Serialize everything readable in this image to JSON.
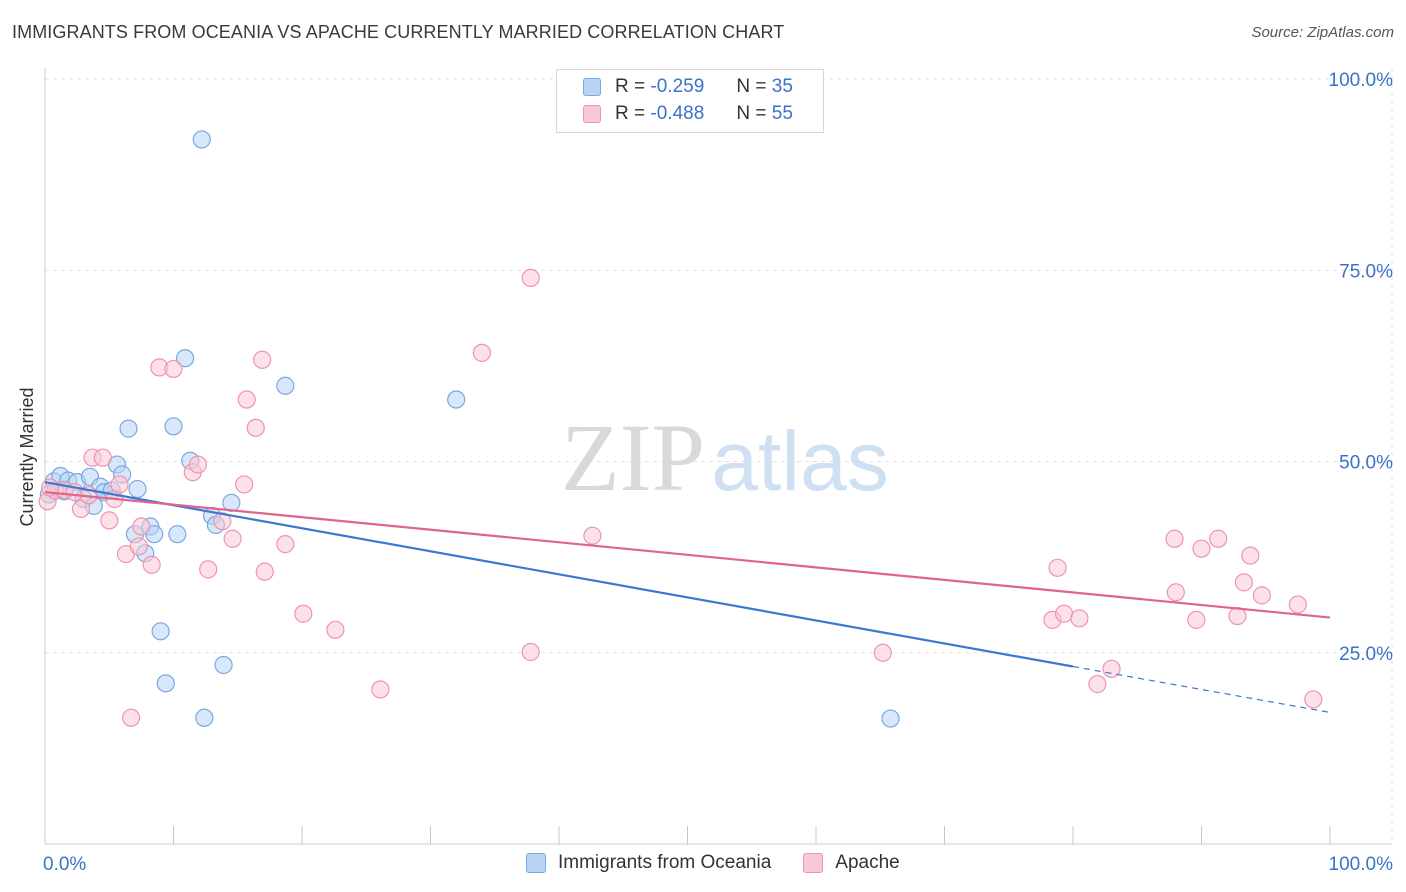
{
  "title": "IMMIGRANTS FROM OCEANIA VS APACHE CURRENTLY MARRIED CORRELATION CHART",
  "source": "Source: ZipAtlas.com",
  "watermark": {
    "zip": "ZIP",
    "atlas": "atlas"
  },
  "legend": {
    "r_label": "R =",
    "n_label": "N =",
    "rows": [
      {
        "r": "-0.259",
        "n": "35",
        "fill": "#b8d4f5",
        "stroke": "#7aa8e0"
      },
      {
        "r": "-0.488",
        "n": "55",
        "fill": "#f9c8d6",
        "stroke": "#ef94b0"
      }
    ]
  },
  "bottom_legend": [
    {
      "label": "Immigrants from Oceania",
      "fill": "#b8d4f5",
      "stroke": "#7aa8e0"
    },
    {
      "label": "Apache",
      "fill": "#f9c8d6",
      "stroke": "#ef94b0"
    }
  ],
  "chart_data": {
    "type": "scatter",
    "title": "IMMIGRANTS FROM OCEANIA VS APACHE CURRENTLY MARRIED CORRELATION CHART",
    "xlabel": "",
    "ylabel": "Currently Married",
    "xlim": [
      0,
      100
    ],
    "ylim": [
      0,
      103
    ],
    "x_tick_labels": [
      "0.0%",
      "100.0%"
    ],
    "y_tick_values": [
      25,
      50,
      75,
      100
    ],
    "y_tick_labels": [
      "25.0%",
      "50.0%",
      "75.0%",
      "100.0%"
    ],
    "grid": true,
    "series": [
      {
        "name": "Immigrants from Oceania",
        "color": "#3a78d4",
        "fill": "#b8d4f5",
        "trend": {
          "x0": 0,
          "y0": 47.3,
          "x1": 80,
          "y1": 23.2,
          "dashed_to_x": 100,
          "dashed_to_y": 17.2
        },
        "points": [
          [
            0.7,
            47.4
          ],
          [
            1.2,
            48.1
          ],
          [
            1.8,
            47.5
          ],
          [
            2.5,
            47.3
          ],
          [
            3.0,
            45.1
          ],
          [
            3.5,
            48.0
          ],
          [
            3.8,
            44.2
          ],
          [
            4.3,
            46.7
          ],
          [
            4.6,
            46.0
          ],
          [
            5.2,
            46.2
          ],
          [
            5.6,
            49.6
          ],
          [
            6.0,
            48.3
          ],
          [
            6.5,
            54.3
          ],
          [
            7.2,
            46.4
          ],
          [
            7.0,
            40.5
          ],
          [
            7.8,
            38.0
          ],
          [
            8.2,
            41.5
          ],
          [
            8.5,
            40.5
          ],
          [
            9.0,
            27.8
          ],
          [
            9.4,
            21.0
          ],
          [
            10.0,
            54.6
          ],
          [
            10.3,
            40.5
          ],
          [
            10.9,
            63.5
          ],
          [
            11.3,
            50.1
          ],
          [
            12.2,
            92.1
          ],
          [
            12.4,
            16.5
          ],
          [
            13.0,
            42.9
          ],
          [
            13.3,
            41.7
          ],
          [
            13.9,
            23.4
          ],
          [
            14.5,
            44.6
          ],
          [
            18.7,
            59.9
          ],
          [
            32.0,
            58.1
          ],
          [
            65.8,
            16.4
          ],
          [
            0.3,
            45.7
          ],
          [
            1.5,
            46.1
          ]
        ]
      },
      {
        "name": "Apache",
        "color": "#e0648c",
        "fill": "#f9c8d6",
        "trend": {
          "x0": 0,
          "y0": 46.0,
          "x1": 100,
          "y1": 29.6
        },
        "points": [
          [
            0.2,
            44.8
          ],
          [
            0.8,
            46.2
          ],
          [
            1.5,
            46.3
          ],
          [
            2.3,
            46.0
          ],
          [
            2.8,
            43.8
          ],
          [
            3.4,
            45.6
          ],
          [
            3.7,
            50.5
          ],
          [
            4.5,
            50.5
          ],
          [
            5.0,
            42.3
          ],
          [
            5.4,
            45.1
          ],
          [
            5.8,
            47.0
          ],
          [
            6.3,
            37.9
          ],
          [
            7.3,
            38.9
          ],
          [
            6.7,
            16.5
          ],
          [
            7.5,
            41.5
          ],
          [
            8.3,
            36.5
          ],
          [
            8.9,
            62.3
          ],
          [
            10.0,
            62.1
          ],
          [
            11.5,
            48.6
          ],
          [
            11.9,
            49.6
          ],
          [
            12.7,
            35.9
          ],
          [
            13.8,
            42.2
          ],
          [
            14.6,
            39.9
          ],
          [
            15.7,
            58.1
          ],
          [
            15.5,
            47.0
          ],
          [
            16.4,
            54.4
          ],
          [
            16.9,
            63.3
          ],
          [
            17.1,
            35.6
          ],
          [
            18.7,
            39.2
          ],
          [
            20.1,
            30.1
          ],
          [
            22.6,
            28.0
          ],
          [
            26.1,
            20.2
          ],
          [
            34.0,
            64.2
          ],
          [
            37.8,
            74.0
          ],
          [
            37.8,
            25.1
          ],
          [
            42.6,
            40.3
          ],
          [
            65.2,
            25.0
          ],
          [
            78.4,
            29.3
          ],
          [
            78.8,
            36.1
          ],
          [
            79.3,
            30.1
          ],
          [
            80.5,
            29.5
          ],
          [
            81.9,
            20.9
          ],
          [
            83.0,
            22.9
          ],
          [
            87.9,
            39.9
          ],
          [
            88.0,
            32.9
          ],
          [
            89.6,
            29.3
          ],
          [
            90.0,
            38.6
          ],
          [
            91.3,
            39.9
          ],
          [
            92.8,
            29.8
          ],
          [
            93.3,
            34.2
          ],
          [
            93.8,
            37.7
          ],
          [
            94.7,
            32.5
          ],
          [
            97.5,
            31.3
          ],
          [
            98.7,
            18.9
          ],
          [
            0.4,
            46.6
          ]
        ]
      }
    ]
  }
}
